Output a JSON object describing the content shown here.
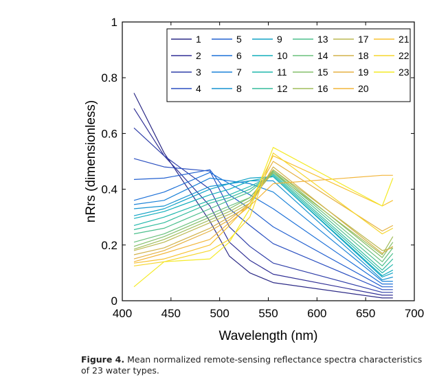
{
  "chart_data": {
    "type": "line",
    "xlabel": "Wavelength (nm)",
    "ylabel": "nRrs (dimensionless)",
    "xlim": [
      400,
      700
    ],
    "ylim": [
      0,
      1
    ],
    "xticks": [
      400,
      450,
      500,
      550,
      600,
      650,
      700
    ],
    "yticks": [
      0,
      0.2,
      0.4,
      0.6,
      0.8,
      1
    ],
    "ytick_labels": [
      "0",
      "0.2",
      "0.4",
      "0.6",
      "0.8",
      "1"
    ],
    "grid": false,
    "legend_placement": "top-right",
    "x": [
      412,
      443,
      490,
      510,
      531,
      555,
      667,
      678
    ],
    "series": [
      {
        "name": "1",
        "color": "#2c2a86",
        "values": [
          0.745,
          0.53,
          0.285,
          0.16,
          0.1,
          0.065,
          0.01,
          0.01
        ]
      },
      {
        "name": "2",
        "color": "#302f95",
        "values": [
          0.69,
          0.52,
          0.34,
          0.21,
          0.145,
          0.095,
          0.02,
          0.02
        ]
      },
      {
        "name": "3",
        "color": "#2f3ea8",
        "values": [
          0.62,
          0.52,
          0.4,
          0.265,
          0.195,
          0.135,
          0.03,
          0.03
        ]
      },
      {
        "name": "4",
        "color": "#2a4fc0",
        "values": [
          0.51,
          0.48,
          0.465,
          0.33,
          0.27,
          0.205,
          0.04,
          0.04
        ]
      },
      {
        "name": "5",
        "color": "#2260d0",
        "values": [
          0.435,
          0.44,
          0.47,
          0.38,
          0.33,
          0.265,
          0.05,
          0.05
        ]
      },
      {
        "name": "6",
        "color": "#1c70d8",
        "values": [
          0.36,
          0.39,
          0.46,
          0.42,
          0.38,
          0.33,
          0.06,
          0.06
        ]
      },
      {
        "name": "7",
        "color": "#1a82d8",
        "values": [
          0.345,
          0.36,
          0.44,
          0.43,
          0.42,
          0.39,
          0.07,
          0.07
        ]
      },
      {
        "name": "8",
        "color": "#1592d0",
        "values": [
          0.33,
          0.34,
          0.41,
          0.42,
          0.43,
          0.43,
          0.075,
          0.085
        ]
      },
      {
        "name": "9",
        "color": "#10a2c6",
        "values": [
          0.305,
          0.33,
          0.4,
          0.42,
          0.44,
          0.445,
          0.085,
          0.1
        ]
      },
      {
        "name": "10",
        "color": "#12aebb",
        "values": [
          0.295,
          0.32,
          0.38,
          0.4,
          0.43,
          0.445,
          0.09,
          0.11
        ]
      },
      {
        "name": "11",
        "color": "#1fb7ac",
        "values": [
          0.27,
          0.3,
          0.36,
          0.38,
          0.41,
          0.45,
          0.1,
          0.13
        ]
      },
      {
        "name": "12",
        "color": "#33bc9c",
        "values": [
          0.255,
          0.28,
          0.35,
          0.37,
          0.4,
          0.455,
          0.11,
          0.15
        ]
      },
      {
        "name": "13",
        "color": "#4bbf8c",
        "values": [
          0.24,
          0.26,
          0.33,
          0.36,
          0.39,
          0.46,
          0.125,
          0.17
        ]
      },
      {
        "name": "14",
        "color": "#68c07c",
        "values": [
          0.21,
          0.24,
          0.31,
          0.34,
          0.37,
          0.465,
          0.14,
          0.19
        ]
      },
      {
        "name": "15",
        "color": "#84bf6a",
        "values": [
          0.195,
          0.23,
          0.3,
          0.33,
          0.37,
          0.47,
          0.155,
          0.21
        ]
      },
      {
        "name": "16",
        "color": "#a0bd5a",
        "values": [
          0.185,
          0.22,
          0.29,
          0.32,
          0.36,
          0.46,
          0.165,
          0.23
        ]
      },
      {
        "name": "17",
        "color": "#bbb850",
        "values": [
          0.18,
          0.21,
          0.28,
          0.31,
          0.35,
          0.47,
          0.18,
          0.19
        ]
      },
      {
        "name": "18",
        "color": "#d2b24a",
        "values": [
          0.165,
          0.19,
          0.26,
          0.3,
          0.34,
          0.48,
          0.17,
          0.195
        ]
      },
      {
        "name": "19",
        "color": "#e5b142",
        "values": [
          0.15,
          0.18,
          0.25,
          0.29,
          0.35,
          0.5,
          0.25,
          0.27
        ]
      },
      {
        "name": "20",
        "color": "#f2b53a",
        "values": [
          0.14,
          0.17,
          0.22,
          0.28,
          0.34,
          0.42,
          0.45,
          0.45
        ]
      },
      {
        "name": "21",
        "color": "#f7c232",
        "values": [
          0.135,
          0.15,
          0.2,
          0.27,
          0.35,
          0.52,
          0.34,
          0.36
        ]
      },
      {
        "name": "22",
        "color": "#f6d62c",
        "values": [
          0.125,
          0.14,
          0.18,
          0.22,
          0.3,
          0.53,
          0.24,
          0.26
        ]
      },
      {
        "name": "23",
        "color": "#f4ea26",
        "values": [
          0.05,
          0.14,
          0.15,
          0.21,
          0.33,
          0.55,
          0.34,
          0.44
        ]
      }
    ]
  },
  "caption": {
    "label": "Figure 4.",
    "text": " Mean normalized remote-sensing reflectance spectra characteristics of 23 water types."
  }
}
